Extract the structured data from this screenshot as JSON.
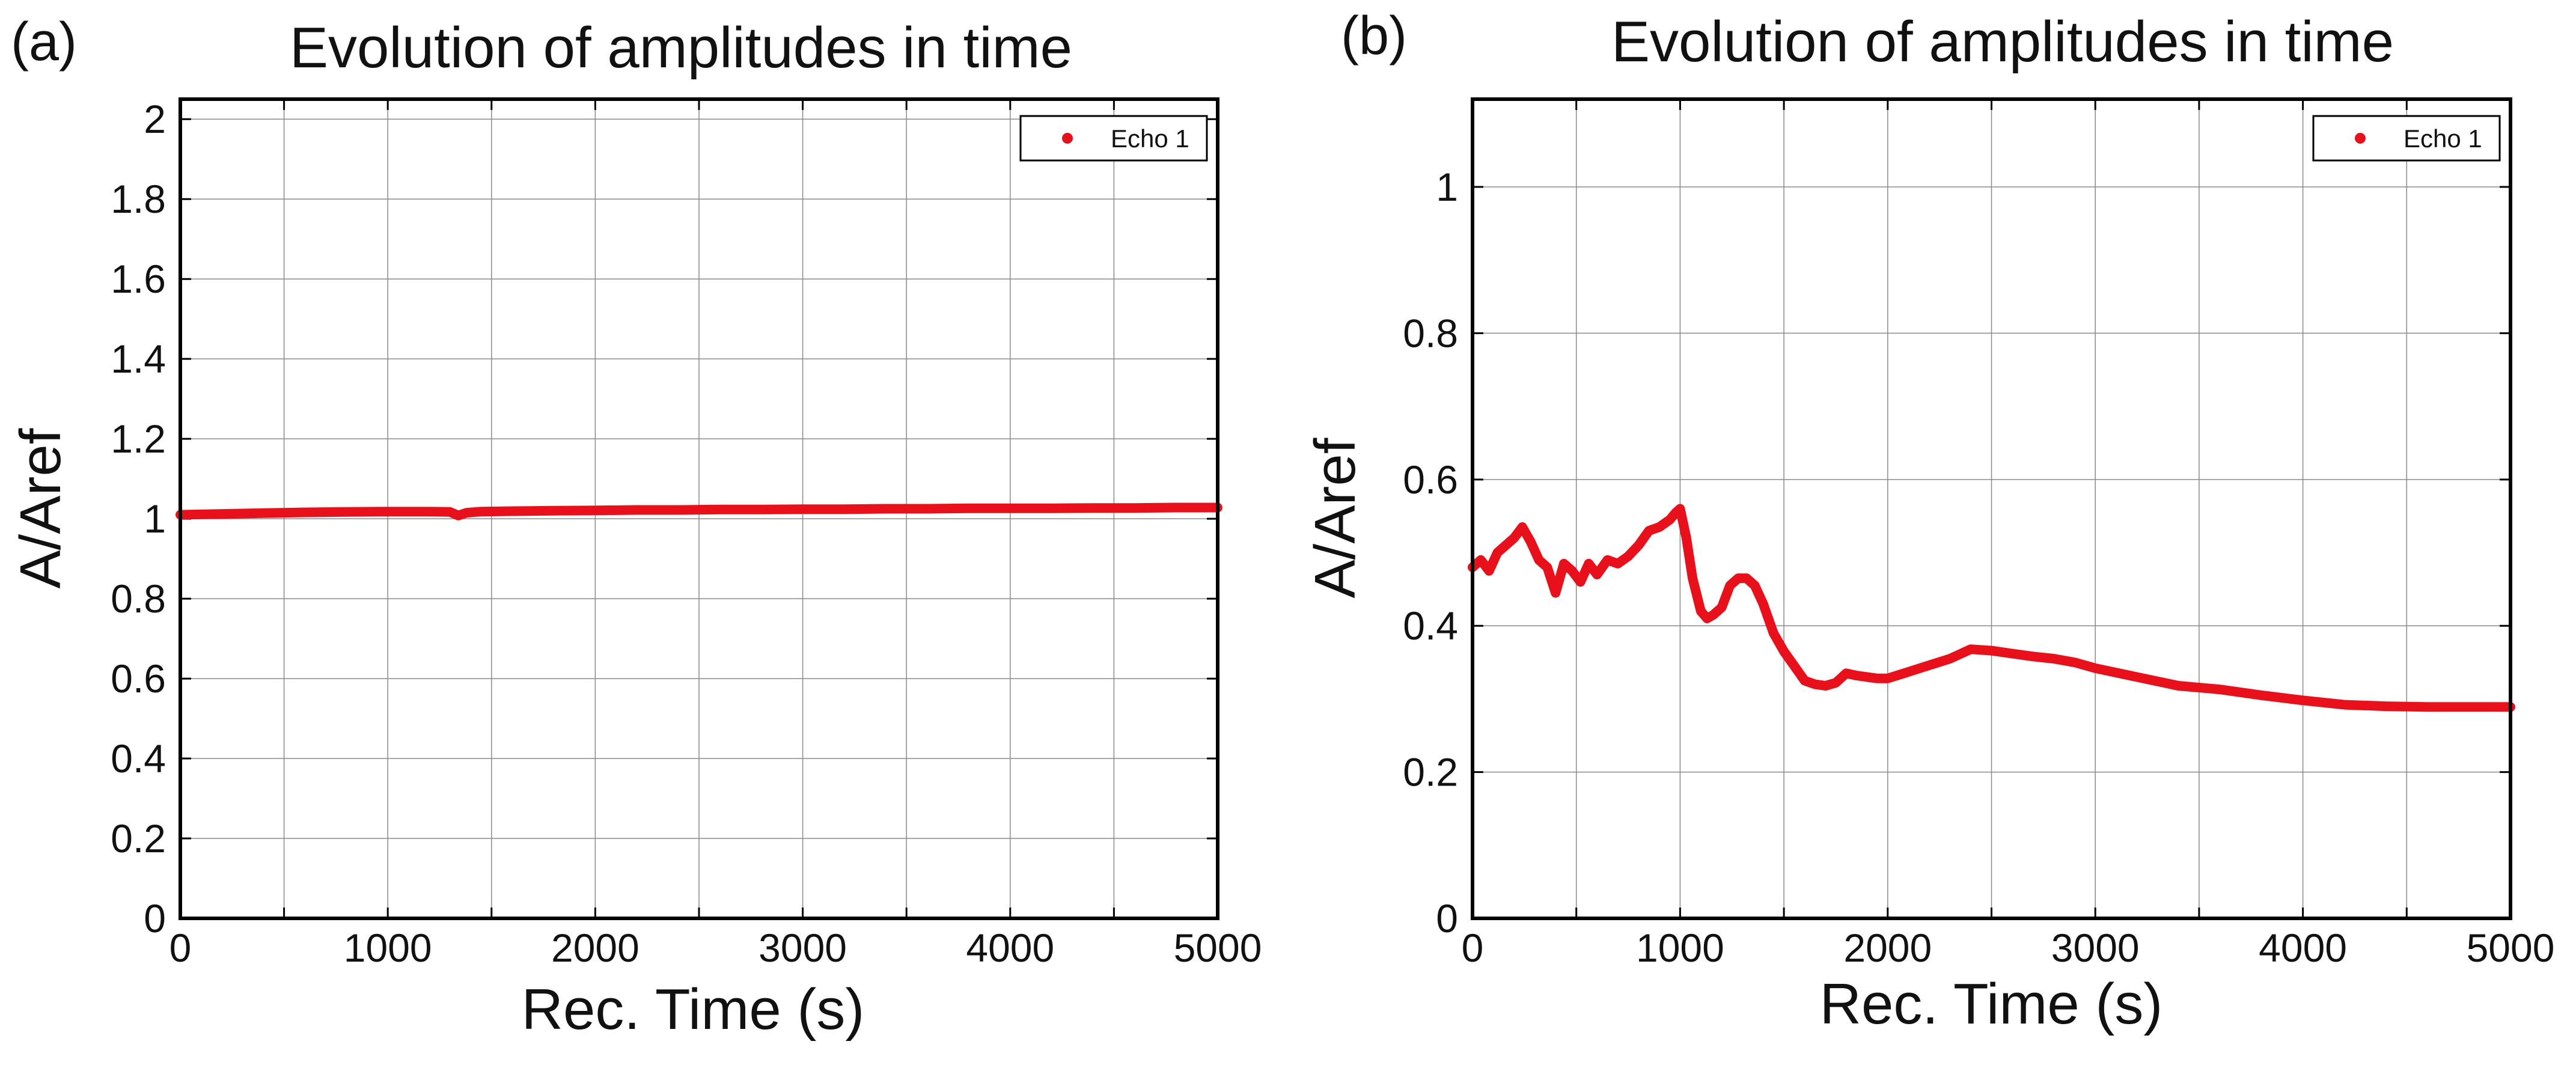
{
  "chart_data": [
    {
      "type": "line",
      "panel_label": "(a)",
      "title": "Evolution of amplitudes in time",
      "xlabel": "Rec. Time (s)",
      "ylabel": "A/Aref",
      "xlim": [
        0,
        5000
      ],
      "ylim": [
        0,
        2.05
      ],
      "xticks": [
        0,
        500,
        1000,
        1500,
        2000,
        2500,
        3000,
        3500,
        4000,
        4500,
        5000
      ],
      "xtick_labels": [
        "0",
        "",
        "1000",
        "",
        "2000",
        "",
        "3000",
        "",
        "4000",
        "",
        "5000"
      ],
      "yticks": [
        0,
        0.2,
        0.4,
        0.6,
        0.8,
        1,
        1.2,
        1.4,
        1.6,
        1.8,
        2
      ],
      "ytick_labels": [
        "0",
        "0.2",
        "0.4",
        "0.6",
        "0.8",
        "1",
        "1.2",
        "1.4",
        "1.6",
        "1.8",
        "2"
      ],
      "grid": true,
      "legend_position": "top-right",
      "series": [
        {
          "name": "Echo 1",
          "color": "#e8101a",
          "x": [
            0,
            200,
            400,
            600,
            800,
            1000,
            1200,
            1300,
            1340,
            1380,
            1450,
            1600,
            1800,
            2000,
            2200,
            2400,
            2600,
            2800,
            3000,
            3200,
            3400,
            3600,
            3800,
            4000,
            4200,
            4400,
            4600,
            4800,
            5000
          ],
          "y": [
            1.01,
            1.012,
            1.014,
            1.016,
            1.017,
            1.018,
            1.018,
            1.017,
            1.008,
            1.015,
            1.018,
            1.019,
            1.02,
            1.021,
            1.022,
            1.022,
            1.023,
            1.023,
            1.024,
            1.024,
            1.025,
            1.025,
            1.026,
            1.026,
            1.026,
            1.027,
            1.027,
            1.028,
            1.028
          ]
        }
      ]
    },
    {
      "type": "line",
      "panel_label": "(b)",
      "title": "Evolution of amplitudes in time",
      "xlabel": "Rec. Time (s)",
      "ylabel": "A/Aref",
      "xlim": [
        0,
        5000
      ],
      "ylim": [
        0,
        1.12
      ],
      "xticks": [
        0,
        500,
        1000,
        1500,
        2000,
        2500,
        3000,
        3500,
        4000,
        4500,
        5000
      ],
      "xtick_labels": [
        "0",
        "",
        "1000",
        "",
        "2000",
        "",
        "3000",
        "",
        "4000",
        "",
        "5000"
      ],
      "yticks": [
        0,
        0.2,
        0.4,
        0.6,
        0.8,
        1
      ],
      "ytick_labels": [
        "0",
        "0.2",
        "0.4",
        "0.6",
        "0.8",
        "1"
      ],
      "grid": true,
      "legend_position": "top-right",
      "series": [
        {
          "name": "Echo 1",
          "color": "#e8101a",
          "x": [
            0,
            40,
            80,
            120,
            160,
            200,
            240,
            280,
            320,
            360,
            400,
            440,
            480,
            520,
            560,
            600,
            650,
            700,
            750,
            800,
            850,
            900,
            950,
            980,
            1000,
            1030,
            1060,
            1100,
            1130,
            1160,
            1200,
            1240,
            1280,
            1320,
            1360,
            1400,
            1450,
            1500,
            1550,
            1600,
            1650,
            1700,
            1750,
            1800,
            1850,
            1900,
            1950,
            2000,
            2100,
            2200,
            2300,
            2400,
            2500,
            2600,
            2700,
            2800,
            2900,
            3000,
            3200,
            3400,
            3600,
            3800,
            4000,
            4200,
            4400,
            4600,
            4800,
            5000
          ],
          "y": [
            0.48,
            0.49,
            0.475,
            0.5,
            0.51,
            0.52,
            0.535,
            0.515,
            0.49,
            0.48,
            0.445,
            0.485,
            0.475,
            0.46,
            0.485,
            0.47,
            0.49,
            0.485,
            0.495,
            0.51,
            0.53,
            0.535,
            0.545,
            0.555,
            0.56,
            0.52,
            0.465,
            0.42,
            0.41,
            0.415,
            0.425,
            0.455,
            0.465,
            0.465,
            0.455,
            0.43,
            0.39,
            0.365,
            0.345,
            0.325,
            0.32,
            0.318,
            0.322,
            0.335,
            0.332,
            0.33,
            0.328,
            0.328,
            0.337,
            0.346,
            0.355,
            0.368,
            0.366,
            0.362,
            0.358,
            0.355,
            0.35,
            0.342,
            0.33,
            0.318,
            0.313,
            0.305,
            0.298,
            0.292,
            0.29,
            0.289,
            0.289,
            0.289
          ]
        }
      ]
    }
  ]
}
